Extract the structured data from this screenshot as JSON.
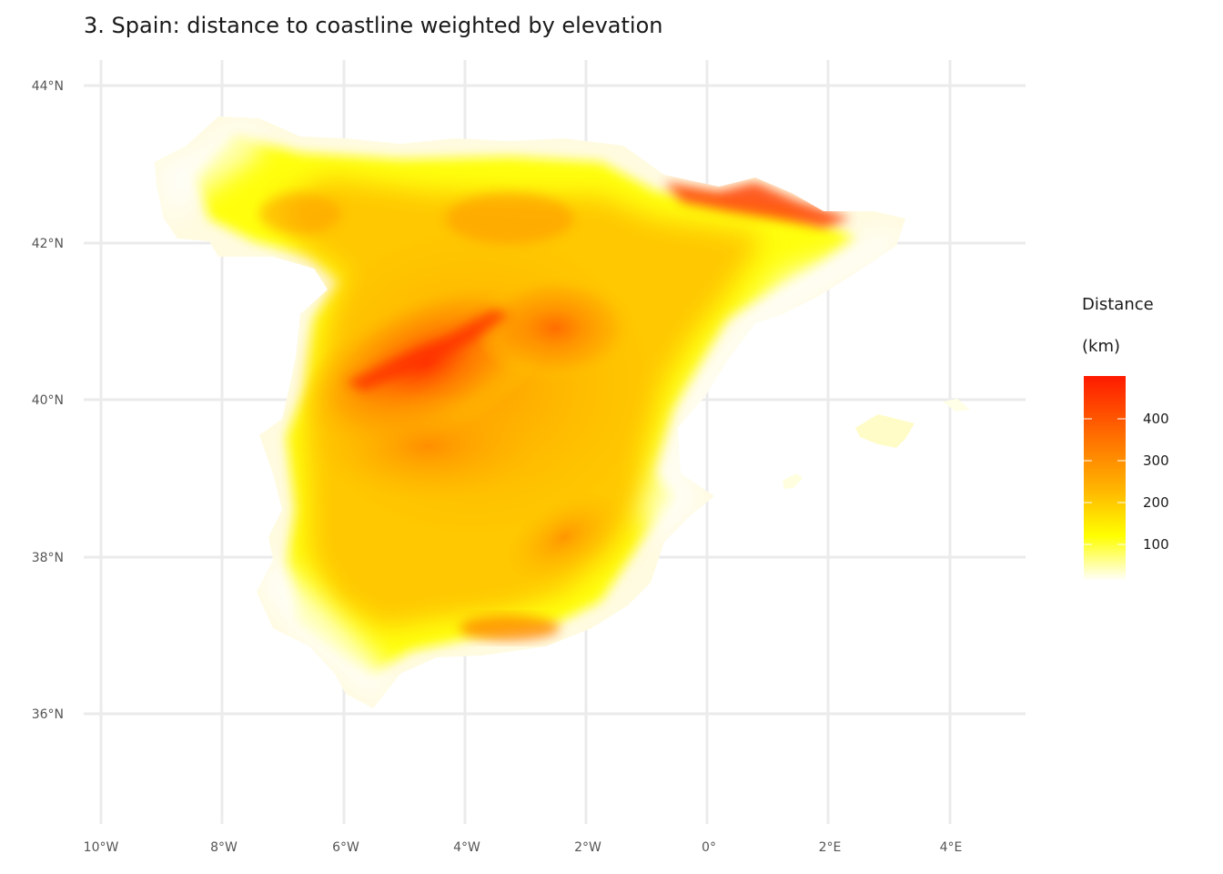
{
  "title": "3. Spain: distance to coastline weighted by elevation",
  "latitude_labels": [
    "44°N",
    "42°N",
    "40°N",
    "38°N",
    "36°N"
  ],
  "longitude_labels": [
    "10°W",
    "8°W",
    "6°W",
    "4°W",
    "2°W",
    "0°",
    "2°E",
    "4°E"
  ],
  "legend": {
    "title_line1": "Distance",
    "title_line2": "(km)",
    "ticks": [
      "400",
      "300",
      "200",
      "100"
    ],
    "colors": [
      "#ff1a00",
      "#ff8c00",
      "#ffd700",
      "#ffff00",
      "#ffffff"
    ]
  },
  "map": {
    "region": "Spain",
    "colors": {
      "far": "#ff2a00",
      "mid": "#ffa500",
      "near": "#ffff00",
      "coast": "#ffffff"
    }
  }
}
